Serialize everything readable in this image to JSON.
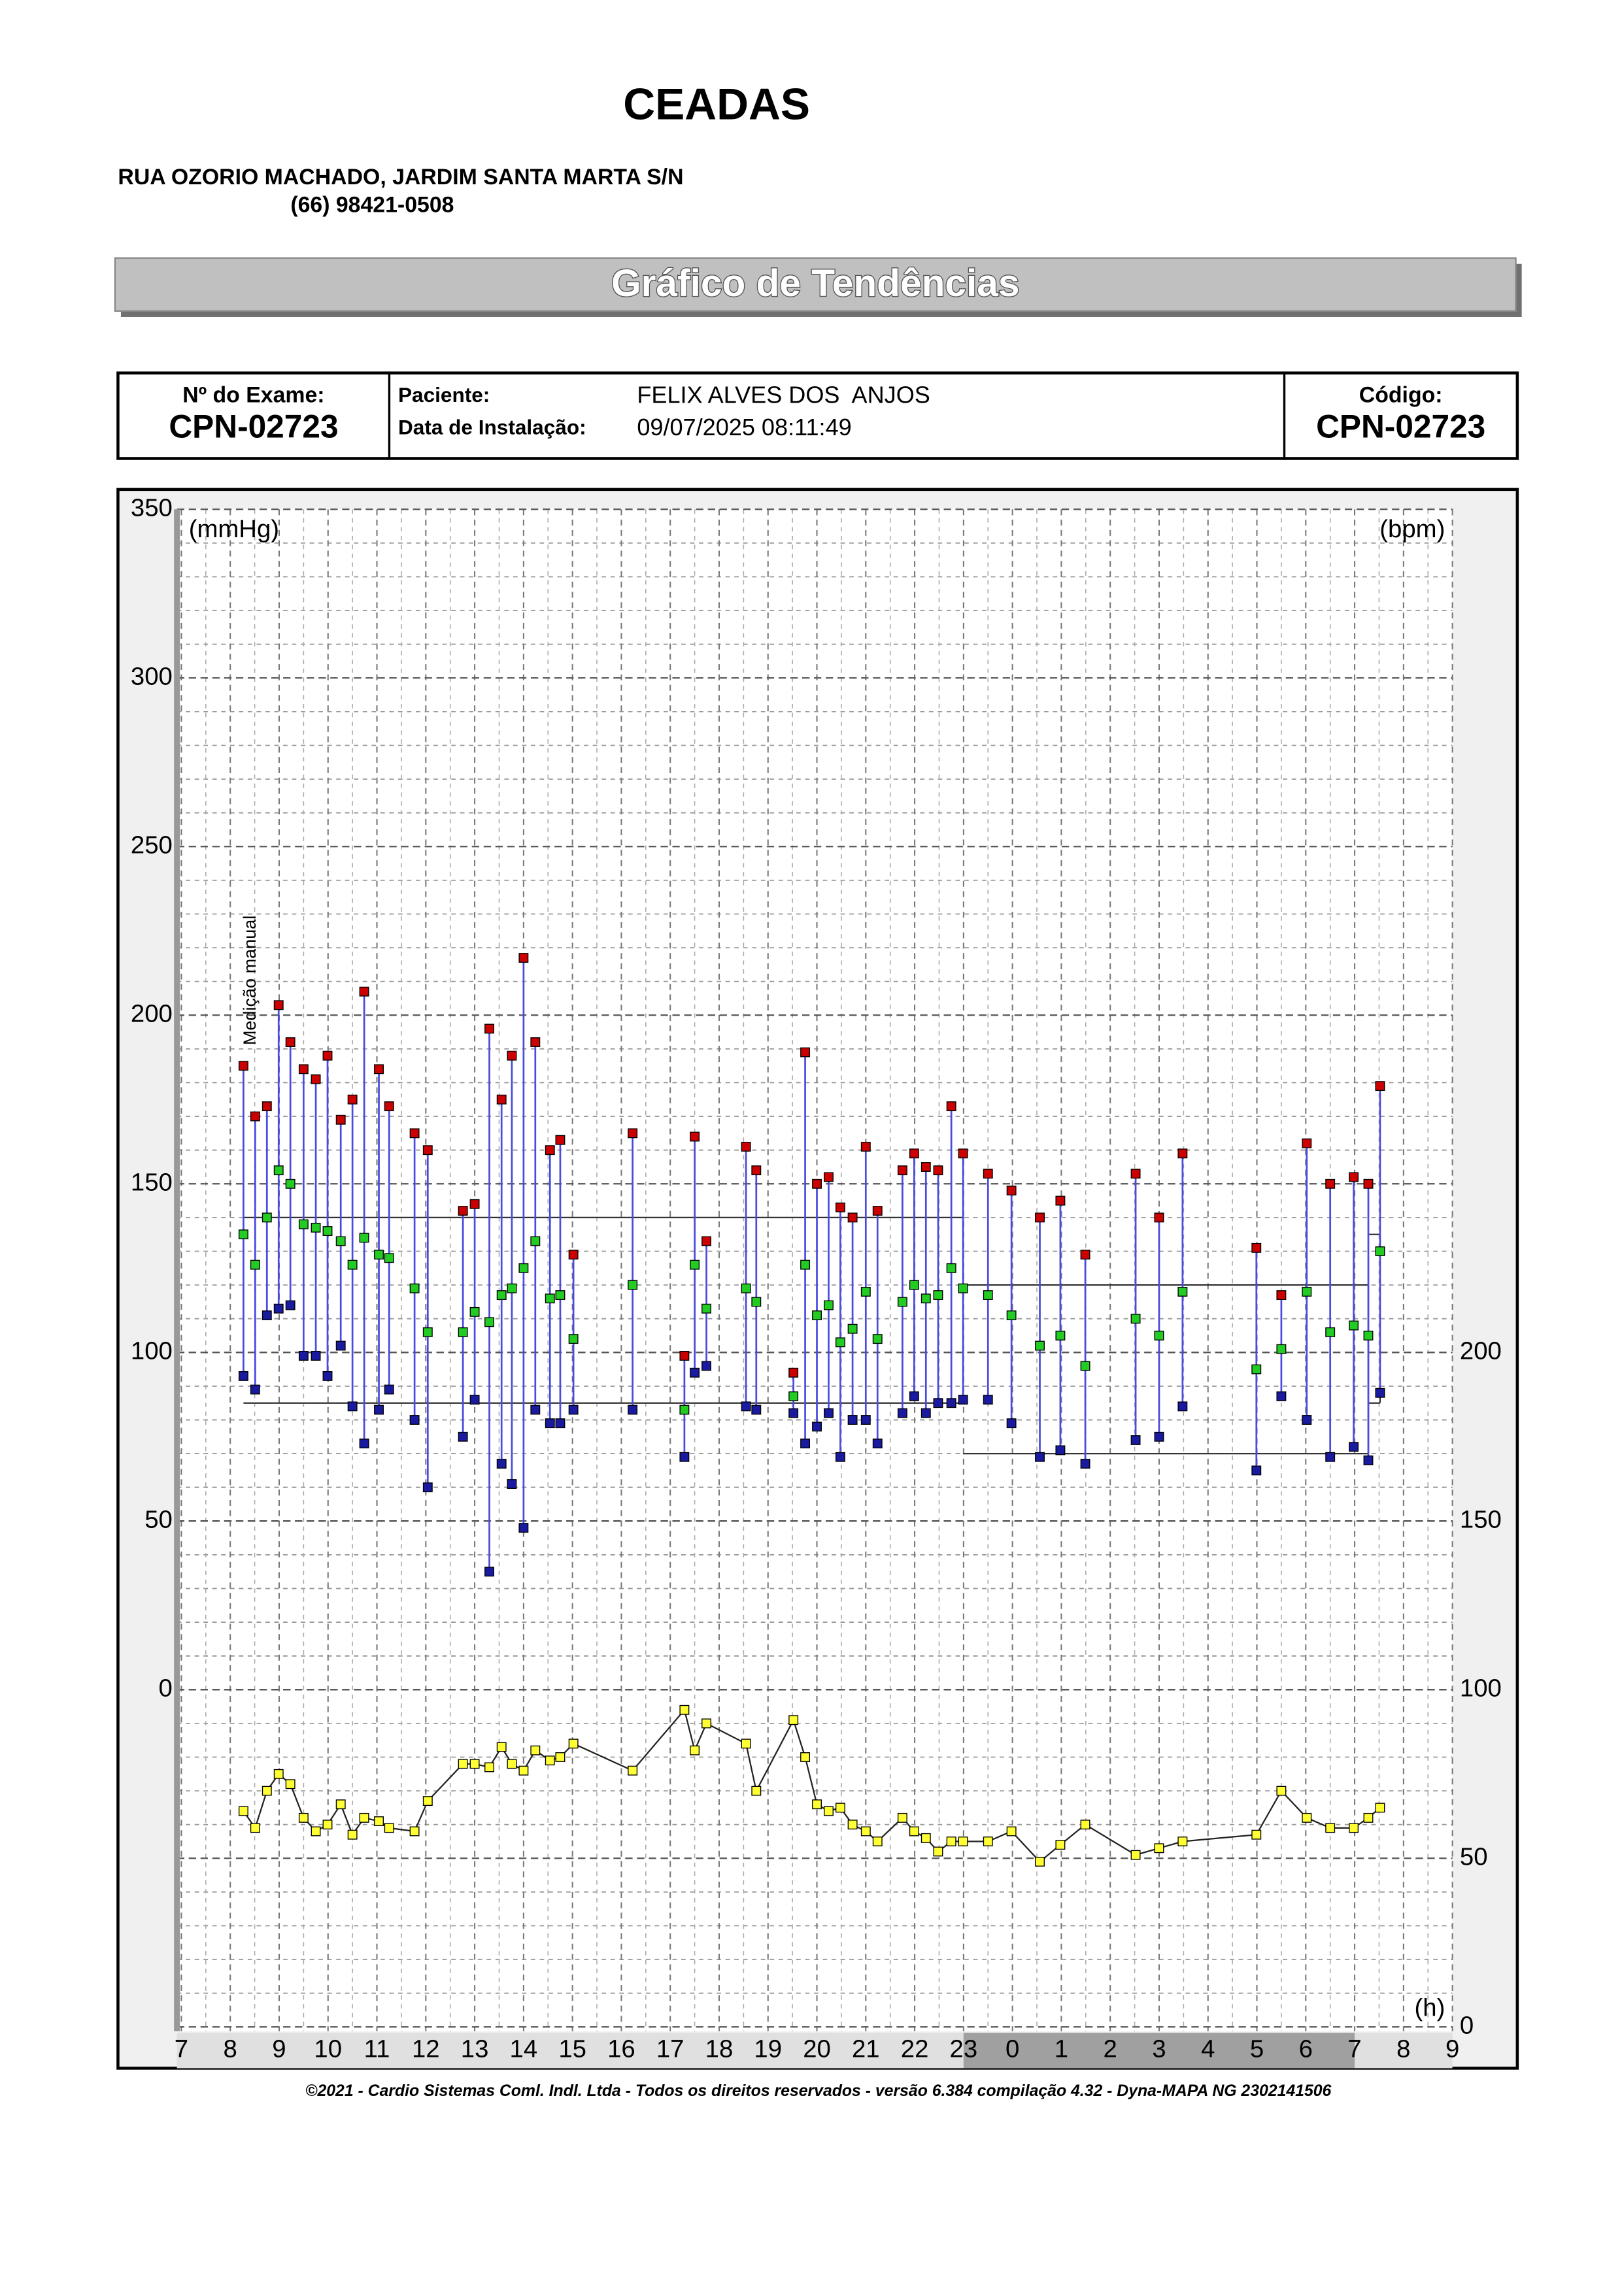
{
  "header": {
    "title": "CEADAS",
    "address": "RUA OZORIO MACHADO, JARDIM SANTA MARTA S/N",
    "phone": "(66) 98421-0508",
    "banner": "Gráfico de Tendências"
  },
  "info": {
    "exam_label": "Nº do Exame:",
    "exam": "CPN-02723",
    "patient_label": "Paciente:",
    "patient": "FELIX ALVES DOS  ANJOS",
    "install_label": "Data de Instalação:",
    "install": "09/07/2025 08:11:49",
    "code_label": "Código:",
    "code": "CPN-02723"
  },
  "footer": "©2021 - Cardio Sistemas Coml. Indl. Ltda - Todos os direitos reservados - versão 6.384 compilação 4.32 - Dyna-MAPA NG 2302141506",
  "chart_data": {
    "type": "line",
    "y_label": "(mmHg)",
    "y2_label": "(bpm)",
    "x_label": "(h)",
    "annotation": {
      "text": "Medição manual",
      "x": 8.27
    },
    "x": [
      8.27,
      8.51,
      8.75,
      8.99,
      9.23,
      9.5,
      9.75,
      9.99,
      10.26,
      10.5,
      10.74,
      11.04,
      11.25,
      11.77,
      12.04,
      12.76,
      13,
      13.3,
      13.55,
      13.76,
      14,
      14.24,
      14.54,
      14.75,
      15.02,
      16.23,
      17.29,
      17.5,
      17.74,
      18.55,
      18.76,
      19.52,
      19.76,
      20,
      20.24,
      20.48,
      20.73,
      21,
      21.24,
      21.75,
      21.99,
      22.23,
      22.48,
      22.75,
      22.99,
      23.5,
      23.98,
      24.56,
      24.98,
      25.49,
      26.52,
      27,
      27.48,
      28.99,
      29.5,
      30.02,
      30.5,
      30.98,
      31.28,
      31.52
    ],
    "series": [
      {
        "color": "#cc0000",
        "values": [
          185,
          170,
          173,
          203,
          192,
          184,
          181,
          188,
          169,
          175,
          207,
          184,
          173,
          165,
          160,
          142,
          144,
          196,
          175,
          188,
          217,
          192,
          160,
          163,
          129,
          165,
          99,
          164,
          133,
          161,
          154,
          94,
          189,
          150,
          152,
          143,
          140,
          161,
          142,
          154,
          159,
          155,
          154,
          173,
          159,
          153,
          148,
          140,
          145,
          129,
          153,
          140,
          159,
          131,
          117,
          162,
          150,
          152,
          150,
          179
        ]
      },
      {
        "color": "#22cc22",
        "values": [
          135,
          126,
          140,
          154,
          150,
          138,
          137,
          136,
          133,
          126,
          134,
          129,
          128,
          119,
          106,
          106,
          112,
          109,
          117,
          119,
          125,
          133,
          116,
          117,
          104,
          120,
          83,
          126,
          113,
          119,
          115,
          87,
          126,
          111,
          114,
          103,
          107,
          118,
          104,
          115,
          120,
          116,
          117,
          125,
          119,
          117,
          111,
          102,
          105,
          96,
          110,
          105,
          118,
          95,
          101,
          118,
          106,
          108,
          105,
          130
        ]
      },
      {
        "color": "#1a1aa0",
        "values": [
          93,
          89,
          111,
          113,
          114,
          99,
          99,
          93,
          102,
          84,
          73,
          83,
          89,
          80,
          60,
          75,
          86,
          35,
          67,
          61,
          48,
          83,
          79,
          79,
          83,
          83,
          69,
          94,
          96,
          84,
          83,
          82,
          73,
          78,
          82,
          69,
          80,
          80,
          73,
          82,
          87,
          82,
          85,
          85,
          86,
          86,
          79,
          69,
          71,
          67,
          74,
          75,
          84,
          65,
          87,
          80,
          69,
          72,
          68,
          88
        ]
      },
      {
        "color": "#ffff33",
        "axis": "y2",
        "values": [
          64,
          59,
          70,
          75,
          72,
          62,
          58,
          60,
          66,
          57,
          62,
          61,
          59,
          58,
          67,
          78,
          78,
          77,
          83,
          78,
          76,
          82,
          79,
          80,
          84,
          76,
          94,
          82,
          90,
          84,
          70,
          91,
          80,
          66,
          64,
          65,
          60,
          58,
          55,
          62,
          58,
          56,
          52,
          55,
          55,
          55,
          58,
          49,
          54,
          60,
          51,
          53,
          55,
          57,
          70,
          62,
          59,
          59,
          62,
          65
        ]
      }
    ],
    "limits": [
      {
        "x": [
          8.27,
          22.99
        ],
        "values": [
          140,
          85
        ]
      },
      {
        "x": [
          22.99,
          31.28
        ],
        "values": [
          120,
          70
        ]
      },
      {
        "x": [
          31.28,
          31.52
        ],
        "values": [
          135,
          85
        ]
      }
    ],
    "sleep": [
      23,
      31
    ],
    "xlim": [
      7,
      33
    ],
    "xticks": [
      7,
      8,
      9,
      10,
      11,
      12,
      13,
      14,
      15,
      16,
      17,
      18,
      19,
      20,
      21,
      22,
      23,
      {
        "value": 24,
        "label": "0"
      },
      {
        "value": 25,
        "label": "1"
      },
      {
        "value": 26,
        "label": "2"
      },
      {
        "value": 27,
        "label": "3"
      },
      {
        "value": 28,
        "label": "4"
      },
      {
        "value": 29,
        "label": "5"
      },
      {
        "value": 30,
        "label": "6"
      },
      {
        "value": 31,
        "label": "7"
      },
      {
        "value": 32,
        "label": "8"
      },
      {
        "value": 33,
        "label": "9"
      }
    ],
    "ylim": [
      -100,
      350
    ],
    "yticks": [
      0,
      50,
      100,
      150,
      200,
      250,
      300,
      350
    ],
    "y2lim": [
      0,
      450
    ],
    "y2ticks": [
      0,
      50,
      100,
      150,
      200
    ],
    "grid": true
  }
}
